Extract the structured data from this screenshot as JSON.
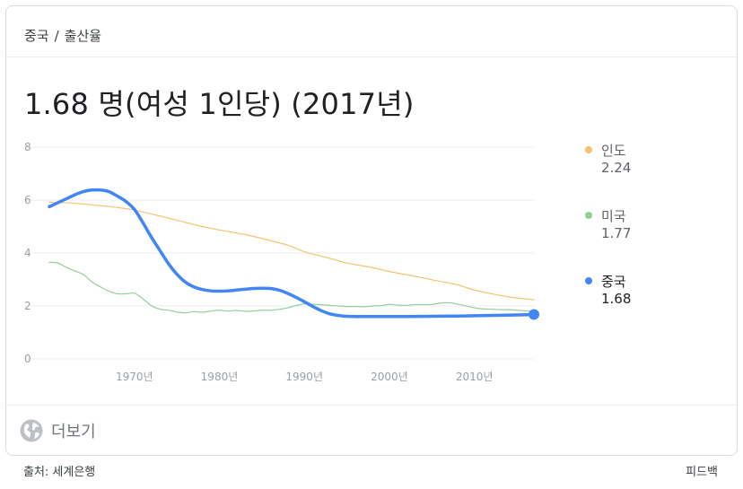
{
  "breadcrumb": {
    "parent": "중국",
    "separator": "/",
    "current": "출산율"
  },
  "headline": "1.68 명(여성 1인당) (2017년)",
  "more_label": "더보기",
  "footer": {
    "source": "출처: 세계은행",
    "feedback": "피드백"
  },
  "colors": {
    "india": "#f4c36e",
    "usa": "#94cf9c",
    "china": "#4285f4",
    "grid": "#ececec"
  },
  "legend": [
    {
      "name": "인도",
      "value": "2.24"
    },
    {
      "name": "미국",
      "value": "1.77"
    },
    {
      "name": "중국",
      "value": "1.68"
    }
  ],
  "chart_data": {
    "type": "line",
    "x_range": [
      1960,
      2017
    ],
    "ylim": [
      0,
      8
    ],
    "y_ticks": [
      0,
      2,
      4,
      6,
      8
    ],
    "x_ticks": [
      1970,
      1980,
      1990,
      2000,
      2010
    ],
    "x_tick_labels": [
      "1970년",
      "1980년",
      "1990년",
      "2000년",
      "2010년"
    ],
    "grid": true,
    "legend_position": "right",
    "series": [
      {
        "name": "인도",
        "x": [
          1960,
          1962,
          1965,
          1968,
          1970,
          1973,
          1975,
          1978,
          1980,
          1983,
          1985,
          1988,
          1990,
          1993,
          1995,
          1998,
          2000,
          2003,
          2005,
          2008,
          2010,
          2013,
          2015,
          2017
        ],
        "y": [
          5.92,
          5.9,
          5.82,
          5.72,
          5.62,
          5.4,
          5.24,
          5.0,
          4.87,
          4.7,
          4.55,
          4.3,
          4.05,
          3.8,
          3.62,
          3.45,
          3.3,
          3.12,
          2.99,
          2.8,
          2.6,
          2.4,
          2.3,
          2.24
        ]
      },
      {
        "name": "미국",
        "x": [
          1960,
          1961,
          1962,
          1963,
          1964,
          1965,
          1966,
          1967,
          1968,
          1969,
          1970,
          1971,
          1972,
          1973,
          1974,
          1975,
          1976,
          1977,
          1978,
          1979,
          1980,
          1981,
          1982,
          1983,
          1984,
          1985,
          1986,
          1987,
          1988,
          1989,
          1990,
          1991,
          1992,
          1993,
          1994,
          1995,
          1996,
          1997,
          1998,
          1999,
          2000,
          2001,
          2002,
          2003,
          2004,
          2005,
          2006,
          2007,
          2008,
          2009,
          2010,
          2011,
          2012,
          2013,
          2014,
          2015,
          2016,
          2017
        ],
        "y": [
          3.65,
          3.62,
          3.46,
          3.32,
          3.19,
          2.91,
          2.72,
          2.56,
          2.46,
          2.46,
          2.48,
          2.27,
          2.01,
          1.88,
          1.84,
          1.77,
          1.74,
          1.79,
          1.76,
          1.81,
          1.84,
          1.81,
          1.83,
          1.8,
          1.81,
          1.84,
          1.84,
          1.87,
          1.93,
          2.01,
          2.08,
          2.06,
          2.05,
          2.02,
          2.0,
          1.98,
          1.98,
          1.97,
          2.0,
          2.01,
          2.06,
          2.03,
          2.02,
          2.05,
          2.05,
          2.06,
          2.11,
          2.12,
          2.07,
          2.0,
          1.93,
          1.89,
          1.88,
          1.86,
          1.86,
          1.84,
          1.82,
          1.77
        ]
      },
      {
        "name": "중국",
        "x": [
          1960,
          1961,
          1962,
          1963,
          1964,
          1965,
          1966,
          1967,
          1968,
          1969,
          1970,
          1971,
          1972,
          1973,
          1974,
          1975,
          1976,
          1977,
          1978,
          1979,
          1980,
          1981,
          1982,
          1983,
          1984,
          1985,
          1986,
          1987,
          1988,
          1989,
          1990,
          1991,
          1992,
          1993,
          1994,
          1995,
          1996,
          1997,
          1998,
          1999,
          2000,
          2002,
          2005,
          2008,
          2010,
          2013,
          2015,
          2017
        ],
        "y": [
          5.75,
          5.9,
          6.05,
          6.2,
          6.32,
          6.38,
          6.38,
          6.32,
          6.15,
          5.95,
          5.65,
          5.15,
          4.6,
          4.1,
          3.6,
          3.2,
          2.9,
          2.72,
          2.62,
          2.57,
          2.56,
          2.57,
          2.6,
          2.63,
          2.66,
          2.67,
          2.66,
          2.6,
          2.48,
          2.33,
          2.16,
          1.98,
          1.82,
          1.7,
          1.64,
          1.61,
          1.6,
          1.6,
          1.6,
          1.6,
          1.6,
          1.6,
          1.61,
          1.62,
          1.63,
          1.65,
          1.66,
          1.68
        ]
      }
    ]
  }
}
